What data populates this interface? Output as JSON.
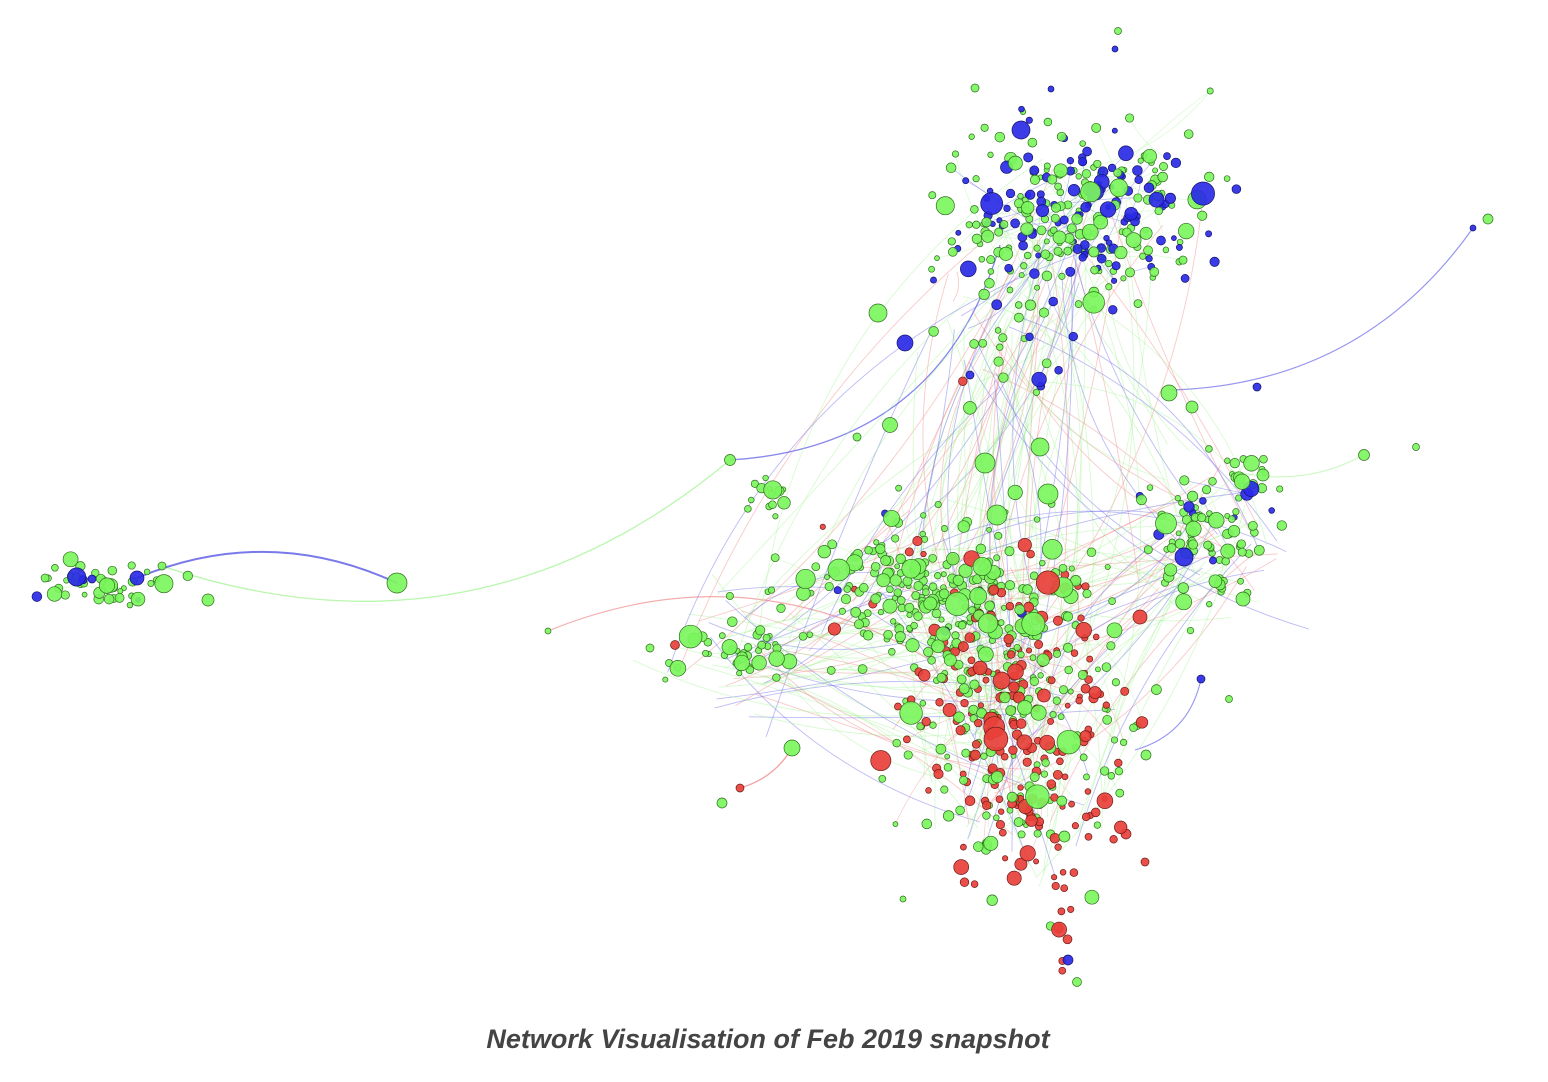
{
  "caption": "Network Visualisation of Feb 2019 snapshot",
  "legend_colors": {
    "green": "#7cf55d",
    "red": "#e8403a",
    "blue": "#2a2ae6"
  },
  "edge_colors": {
    "green": "#a8f59a",
    "red": "#f08a8a",
    "blue": "#6a6ae8"
  }
}
